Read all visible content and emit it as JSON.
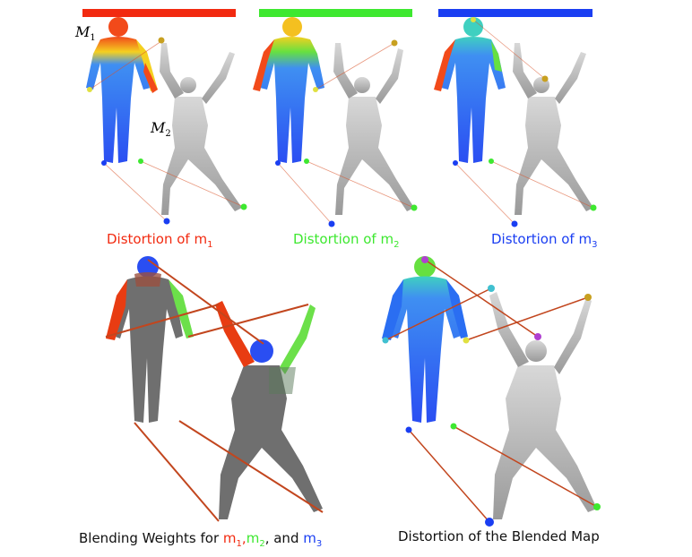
{
  "colors": {
    "m1": "#f22a10",
    "m2": "#3ee830",
    "m3": "#1a3ef2",
    "mesh_gray": "#6f6f6f",
    "correspondence_line": "#d9542a"
  },
  "labels": {
    "M1": "M",
    "M1_sub": "1",
    "M2": "M",
    "M2_sub": "2"
  },
  "captions": {
    "top_1": {
      "text": "Distortion of m",
      "sub": "1"
    },
    "top_2": {
      "text": "Distortion of m",
      "sub": "2"
    },
    "top_3": {
      "text": "Distortion of m",
      "sub": "3"
    },
    "bottom_left": {
      "prefix": "Blending Weights for ",
      "m1": "m",
      "m1_sub": "1",
      "sep1": ",",
      "m2": "m",
      "m2_sub": "2",
      "sep2": ", and ",
      "m3": "m",
      "m3_sub": "3"
    },
    "bottom_right": "Distortion of the Blended Map"
  }
}
